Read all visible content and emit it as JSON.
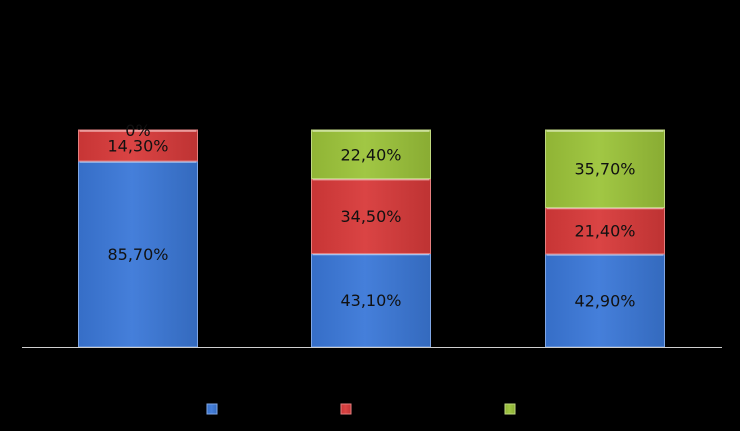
{
  "chart_data": {
    "type": "bar",
    "stacked": true,
    "percent": true,
    "categories": [
      "",
      "",
      ""
    ],
    "ylim": [
      0,
      100
    ],
    "grid": false,
    "legend_position": "bottom",
    "background": "#000000",
    "series": [
      {
        "name": "",
        "color": "#3b78d8",
        "values": [
          85.7,
          43.1,
          42.9
        ],
        "labels": [
          "85,70%",
          "43,10%",
          "42,90%"
        ]
      },
      {
        "name": "",
        "color": "#d83a3a",
        "values": [
          14.3,
          34.5,
          21.4
        ],
        "labels": [
          "14,30%",
          "34,50%",
          "21,40%"
        ]
      },
      {
        "name": "",
        "color": "#9cc43a",
        "values": [
          0,
          22.4,
          35.7
        ],
        "labels": [
          "0%",
          "22,40%",
          "35,70%"
        ]
      }
    ]
  }
}
